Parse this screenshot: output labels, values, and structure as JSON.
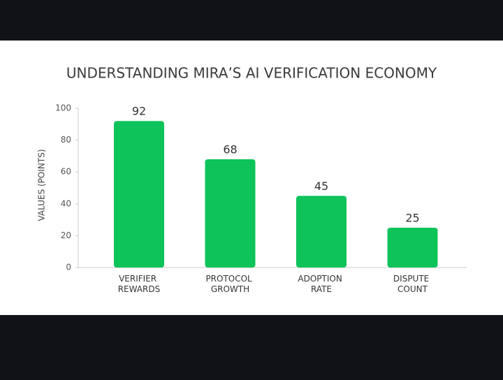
{
  "chart_data": {
    "type": "bar",
    "title": "UNDERSTANDING MIRA’S AI VERIFICATION ECONOMY",
    "y_label": "VALUES (POINTS)",
    "categories": [
      "VERIFIER REWARDS",
      "PROTOCOL GROWTH",
      "ADOPTION RATE",
      "DISPUTE COUNT"
    ],
    "values": [
      92,
      68,
      45,
      25
    ],
    "color": "#0dc35a",
    "ylim": [
      0,
      100
    ],
    "yticks": [
      0,
      20,
      40,
      60,
      80,
      100
    ],
    "grid": false
  }
}
